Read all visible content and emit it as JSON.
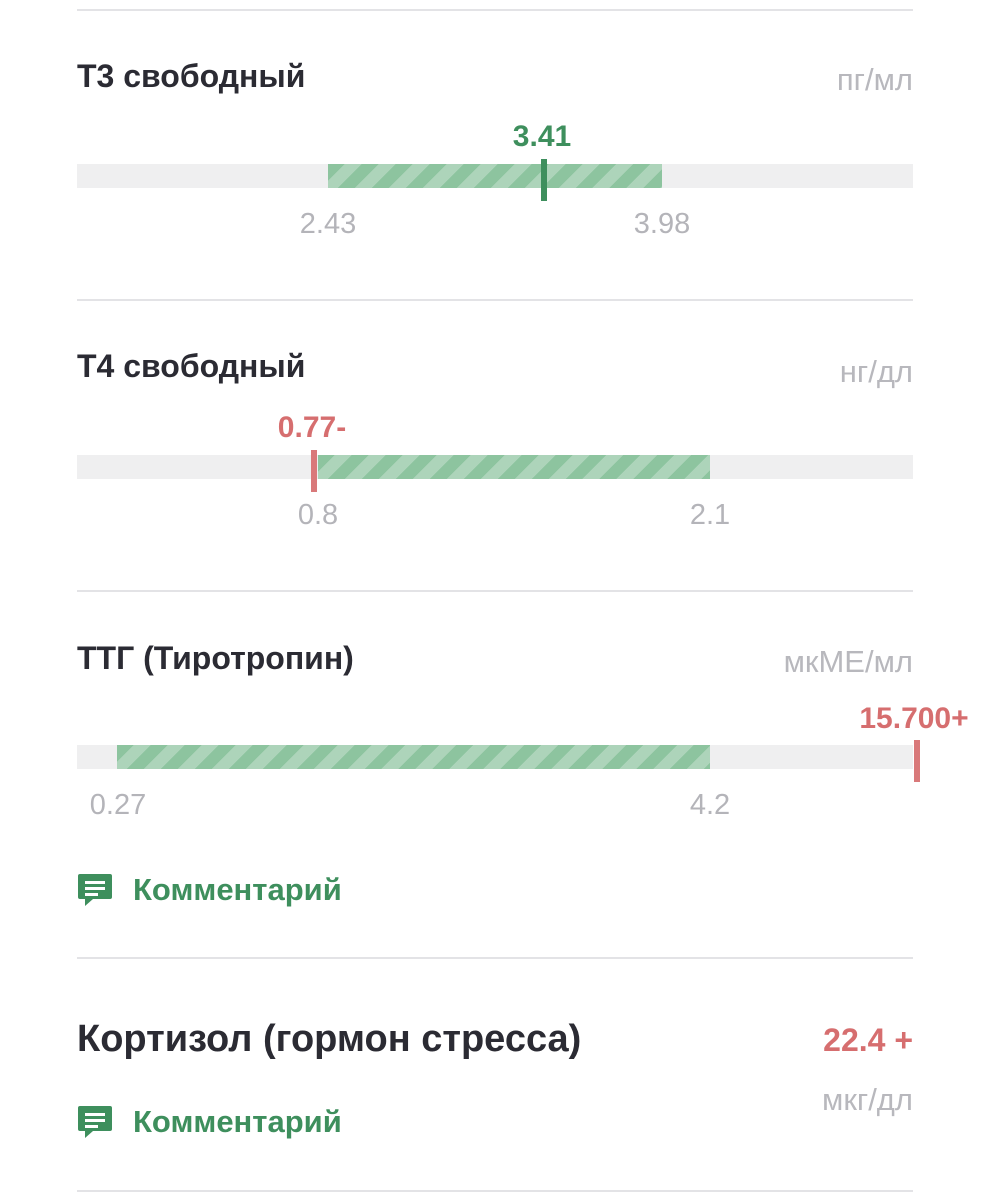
{
  "tests": [
    {
      "title": "Т3 свободный",
      "unit": "пг/мл",
      "value_label": "3.41",
      "value": 3.41,
      "ref_low_label": "2.43",
      "ref_low": 2.43,
      "ref_high_label": "3.98",
      "ref_high": 3.98,
      "status": "normal"
    },
    {
      "title": "Т4 свободный",
      "unit": "нг/дл",
      "value_label": "0.77-",
      "value": 0.77,
      "ref_low_label": "0.8",
      "ref_low": 0.8,
      "ref_high_label": "2.1",
      "ref_high": 2.1,
      "status": "low"
    },
    {
      "title": "ТТГ (Тиротропин)",
      "unit": "мкМЕ/мл",
      "value_label": "15.700+",
      "value": 15.7,
      "ref_low_label": "0.27",
      "ref_low": 0.27,
      "ref_high_label": "4.2",
      "ref_high": 4.2,
      "status": "high"
    }
  ],
  "comment_label": "Комментарий",
  "cortisol": {
    "title": "Кортизол (гормон стресса)",
    "value_label": "22.4 +",
    "unit": "мкг/дл",
    "comment_label": "Комментарий"
  },
  "colors": {
    "normal": "#3e8f5d",
    "abnormal": "#d66e6f",
    "range_fill": "#8dc49f",
    "track": "#efeff0"
  },
  "icons": {
    "comment": "comment-icon"
  }
}
